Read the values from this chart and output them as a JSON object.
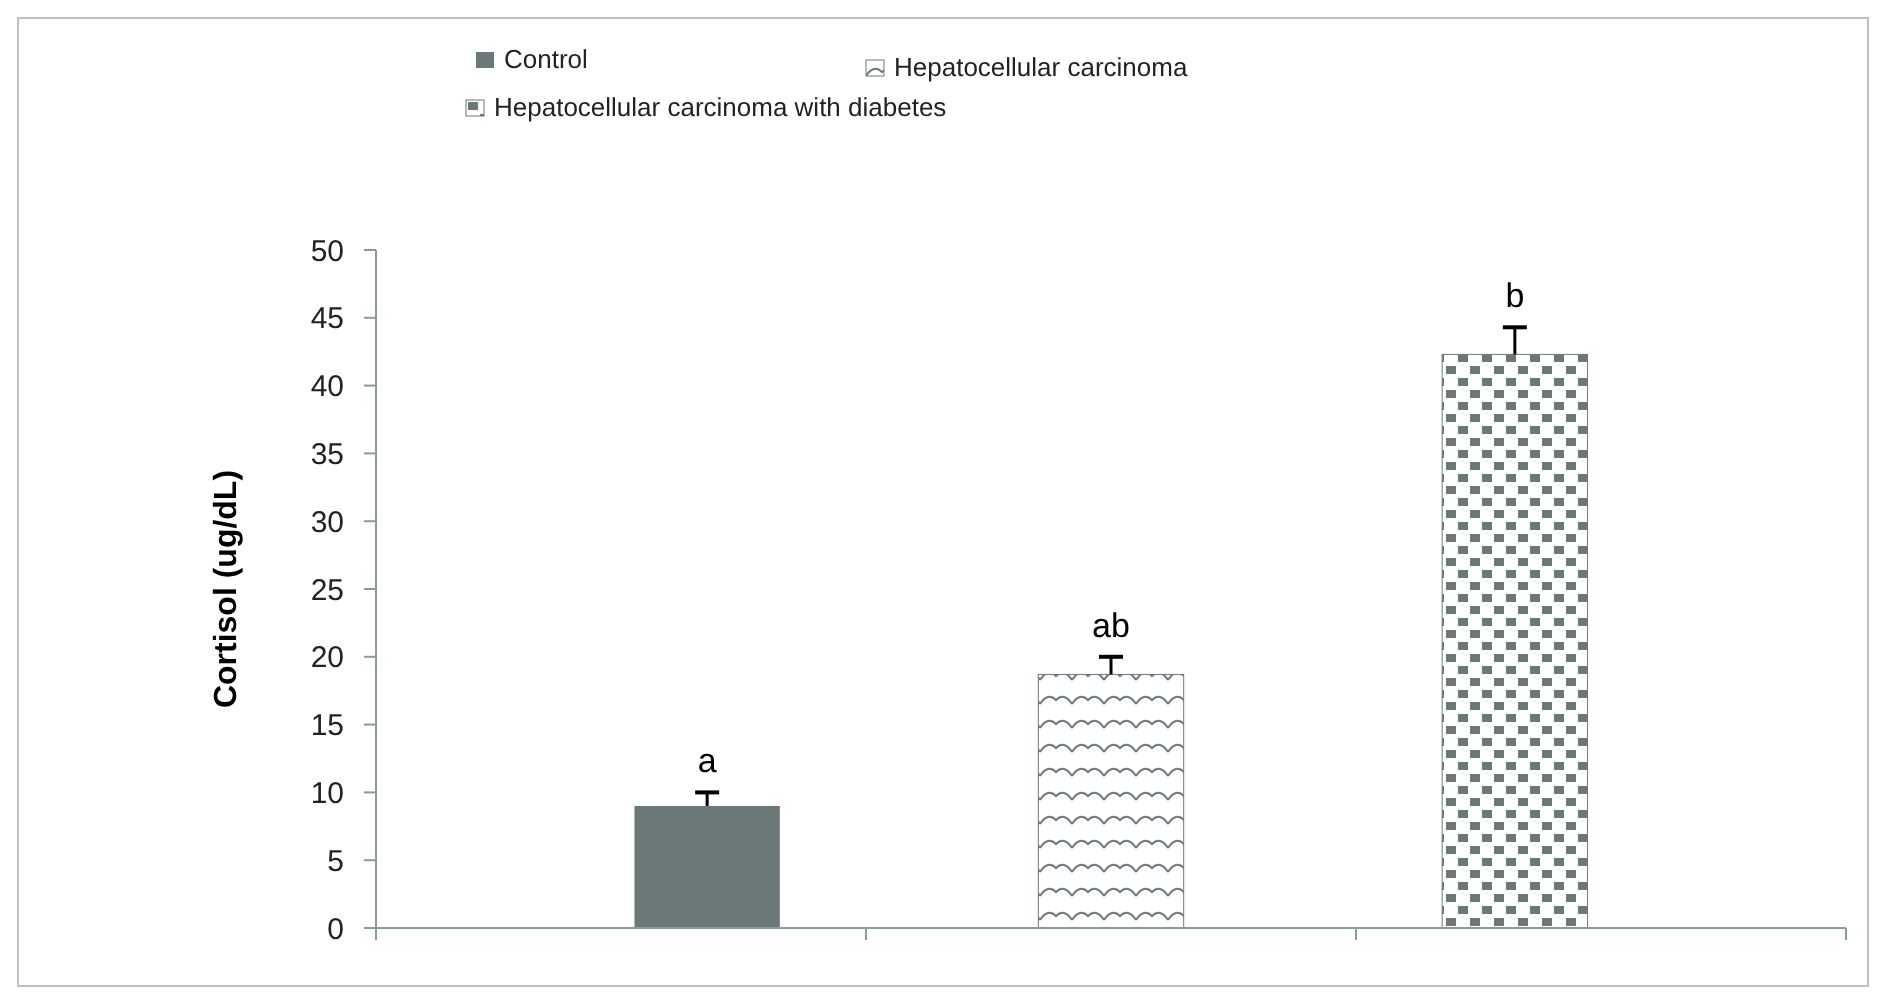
{
  "chart_data": {
    "type": "bar",
    "ylabel": "Cortisol (ug/dL)",
    "categories": [
      null,
      null,
      null
    ],
    "series": [
      {
        "name": "Control",
        "color": "#6b7878",
        "values": [
          9,
          null,
          null
        ],
        "errors": [
          1,
          null,
          null
        ]
      },
      {
        "name": "Hepatocellular carcinoma",
        "color": "#6b7878",
        "values": [
          null,
          18.7,
          null
        ],
        "errors": [
          null,
          1.3,
          null
        ]
      },
      {
        "name": "Hepatocellular carcinoma with diabetes",
        "color": "#6b7878",
        "values": [
          null,
          null,
          42.3
        ],
        "errors": [
          null,
          null,
          2
        ]
      }
    ],
    "ylim": [
      0,
      50
    ],
    "yticks": [
      0,
      5,
      10,
      15,
      20,
      25,
      30,
      35,
      40,
      45,
      50
    ],
    "grid": false,
    "legend": "top left",
    "annotations": [
      {
        "text": "a",
        "y": 10
      },
      {
        "text": "ab",
        "y": 20
      },
      {
        "text": "b",
        "y": 44.3
      }
    ]
  }
}
